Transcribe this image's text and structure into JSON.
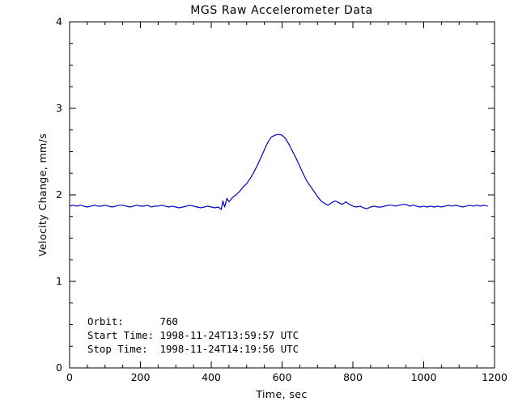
{
  "page_bg": "#ffffff",
  "chart_data": {
    "type": "line",
    "title": "MGS Raw Accelerometer Data",
    "xlabel": "Time, sec",
    "ylabel": "Velocity Change, mm/s",
    "xlim": [
      0,
      1200
    ],
    "ylim": [
      0,
      4
    ],
    "xticks": [
      0,
      200,
      400,
      600,
      800,
      1000,
      1200
    ],
    "yticks": [
      0,
      1,
      2,
      3,
      4
    ],
    "x_minor_step": 50,
    "y_minor_step": 0.25,
    "grid": false,
    "legend": "none",
    "axis_color": "#000000",
    "line_color": "#0000cc",
    "annotations": [
      "Orbit:      760",
      "Start Time: 1998-11-24T13:59:57 UTC",
      "Stop Time:  1998-11-24T14:19:56 UTC"
    ],
    "series": [
      {
        "name": "Velocity Change",
        "x": [
          0,
          10,
          20,
          30,
          40,
          50,
          60,
          70,
          80,
          90,
          100,
          110,
          120,
          130,
          140,
          150,
          160,
          170,
          180,
          190,
          200,
          210,
          220,
          230,
          240,
          250,
          260,
          270,
          280,
          290,
          300,
          310,
          320,
          330,
          340,
          350,
          360,
          370,
          380,
          390,
          400,
          410,
          420,
          428,
          433,
          438,
          444,
          450,
          460,
          470,
          480,
          490,
          500,
          510,
          520,
          530,
          540,
          550,
          560,
          570,
          580,
          590,
          600,
          610,
          620,
          630,
          640,
          650,
          660,
          670,
          680,
          690,
          700,
          710,
          720,
          730,
          740,
          750,
          760,
          770,
          780,
          790,
          800,
          810,
          820,
          830,
          840,
          850,
          860,
          870,
          880,
          890,
          900,
          910,
          920,
          930,
          940,
          950,
          960,
          970,
          980,
          990,
          1000,
          1010,
          1020,
          1030,
          1040,
          1050,
          1060,
          1070,
          1080,
          1090,
          1100,
          1110,
          1120,
          1130,
          1140,
          1150,
          1160,
          1170,
          1180
        ],
        "y": [
          1.87,
          1.88,
          1.87,
          1.88,
          1.87,
          1.86,
          1.87,
          1.88,
          1.87,
          1.87,
          1.88,
          1.87,
          1.86,
          1.87,
          1.88,
          1.88,
          1.87,
          1.86,
          1.87,
          1.88,
          1.87,
          1.87,
          1.88,
          1.86,
          1.87,
          1.87,
          1.88,
          1.87,
          1.86,
          1.87,
          1.86,
          1.85,
          1.86,
          1.87,
          1.88,
          1.87,
          1.86,
          1.85,
          1.86,
          1.87,
          1.86,
          1.85,
          1.86,
          1.83,
          1.93,
          1.86,
          1.96,
          1.92,
          1.97,
          2.0,
          2.04,
          2.09,
          2.13,
          2.19,
          2.26,
          2.34,
          2.43,
          2.52,
          2.61,
          2.67,
          2.69,
          2.7,
          2.69,
          2.65,
          2.58,
          2.5,
          2.42,
          2.33,
          2.24,
          2.16,
          2.1,
          2.04,
          1.98,
          1.93,
          1.9,
          1.88,
          1.91,
          1.93,
          1.91,
          1.89,
          1.92,
          1.89,
          1.87,
          1.86,
          1.87,
          1.85,
          1.84,
          1.86,
          1.87,
          1.86,
          1.86,
          1.87,
          1.88,
          1.88,
          1.87,
          1.88,
          1.89,
          1.89,
          1.87,
          1.88,
          1.87,
          1.86,
          1.87,
          1.86,
          1.87,
          1.86,
          1.87,
          1.86,
          1.87,
          1.88,
          1.87,
          1.88,
          1.87,
          1.86,
          1.87,
          1.88,
          1.87,
          1.88,
          1.87,
          1.88,
          1.87
        ]
      }
    ]
  }
}
